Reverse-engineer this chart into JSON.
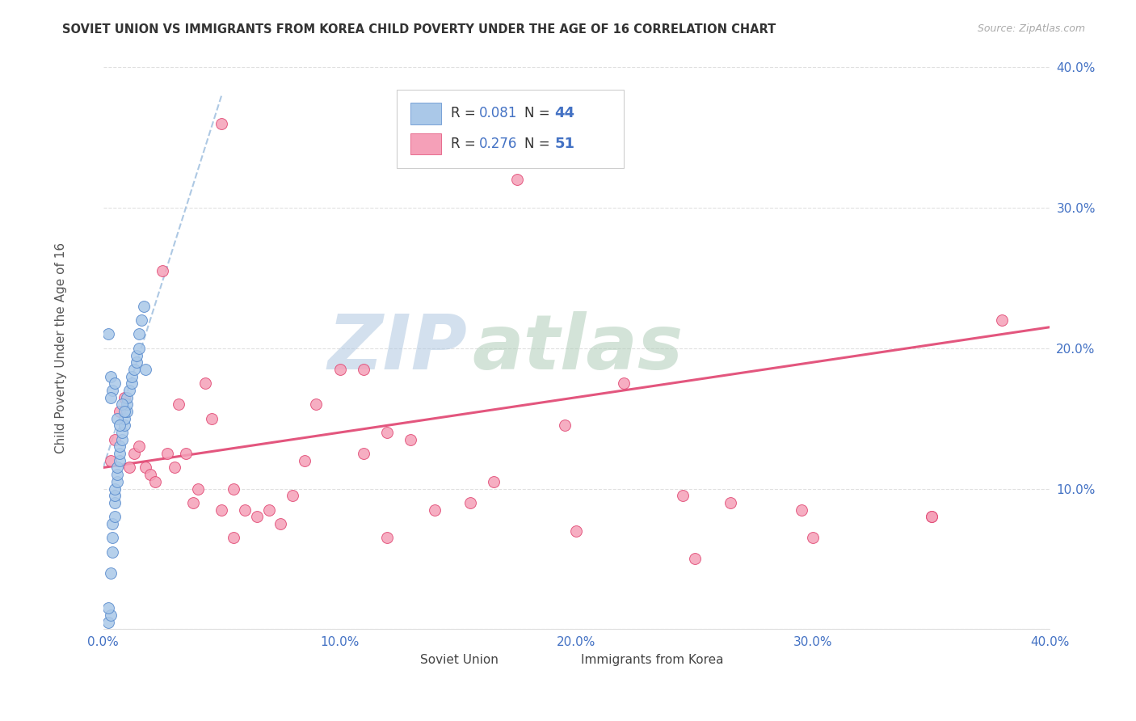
{
  "title": "SOVIET UNION VS IMMIGRANTS FROM KOREA CHILD POVERTY UNDER THE AGE OF 16 CORRELATION CHART",
  "source": "Source: ZipAtlas.com",
  "ylabel": "Child Poverty Under the Age of 16",
  "xlim": [
    0.0,
    0.4
  ],
  "ylim": [
    0.0,
    0.4
  ],
  "x_ticks": [
    0.0,
    0.1,
    0.2,
    0.3,
    0.4
  ],
  "y_ticks": [
    0.0,
    0.1,
    0.2,
    0.3,
    0.4
  ],
  "x_tick_labels": [
    "0.0%",
    "10.0%",
    "20.0%",
    "30.0%",
    "40.0%"
  ],
  "y_tick_labels": [
    "",
    "10.0%",
    "20.0%",
    "30.0%",
    "40.0%"
  ],
  "soviet_color": "#aac8e8",
  "soviet_edge_color": "#5588cc",
  "korea_color": "#f5a0b8",
  "korea_edge_color": "#e04470",
  "soviet_R": "0.081",
  "soviet_N": "44",
  "korea_R": "0.276",
  "korea_N": "51",
  "trendline_soviet_color": "#99bbdd",
  "trendline_korea_color": "#e04470",
  "soviet_trend_y0": 0.115,
  "soviet_trend_y1": 0.38,
  "korea_trend_y0": 0.115,
  "korea_trend_y1": 0.215,
  "soviet_x": [
    0.002,
    0.003,
    0.003,
    0.004,
    0.004,
    0.004,
    0.005,
    0.005,
    0.005,
    0.005,
    0.006,
    0.006,
    0.006,
    0.007,
    0.007,
    0.007,
    0.008,
    0.008,
    0.009,
    0.009,
    0.01,
    0.01,
    0.01,
    0.011,
    0.012,
    0.012,
    0.013,
    0.014,
    0.014,
    0.015,
    0.015,
    0.016,
    0.017,
    0.018,
    0.002,
    0.003,
    0.004,
    0.005,
    0.006,
    0.007,
    0.008,
    0.009,
    0.003,
    0.002
  ],
  "soviet_y": [
    0.005,
    0.01,
    0.04,
    0.055,
    0.065,
    0.075,
    0.08,
    0.09,
    0.095,
    0.1,
    0.105,
    0.11,
    0.115,
    0.12,
    0.125,
    0.13,
    0.135,
    0.14,
    0.145,
    0.15,
    0.155,
    0.16,
    0.165,
    0.17,
    0.175,
    0.18,
    0.185,
    0.19,
    0.195,
    0.2,
    0.21,
    0.22,
    0.23,
    0.185,
    0.21,
    0.18,
    0.17,
    0.175,
    0.15,
    0.145,
    0.16,
    0.155,
    0.165,
    0.015
  ],
  "korea_x": [
    0.003,
    0.005,
    0.007,
    0.009,
    0.011,
    0.013,
    0.015,
    0.018,
    0.02,
    0.022,
    0.025,
    0.027,
    0.03,
    0.032,
    0.035,
    0.038,
    0.04,
    0.043,
    0.046,
    0.05,
    0.055,
    0.06,
    0.065,
    0.07,
    0.075,
    0.08,
    0.09,
    0.1,
    0.11,
    0.12,
    0.13,
    0.14,
    0.155,
    0.165,
    0.175,
    0.195,
    0.22,
    0.245,
    0.265,
    0.295,
    0.35,
    0.38,
    0.12,
    0.085,
    0.055,
    0.2,
    0.25,
    0.3,
    0.05,
    0.35,
    0.11
  ],
  "korea_y": [
    0.12,
    0.135,
    0.155,
    0.165,
    0.115,
    0.125,
    0.13,
    0.115,
    0.11,
    0.105,
    0.255,
    0.125,
    0.115,
    0.16,
    0.125,
    0.09,
    0.1,
    0.175,
    0.15,
    0.085,
    0.1,
    0.085,
    0.08,
    0.085,
    0.075,
    0.095,
    0.16,
    0.185,
    0.185,
    0.14,
    0.135,
    0.085,
    0.09,
    0.105,
    0.32,
    0.145,
    0.175,
    0.095,
    0.09,
    0.085,
    0.08,
    0.22,
    0.065,
    0.12,
    0.065,
    0.07,
    0.05,
    0.065,
    0.36,
    0.08,
    0.125
  ]
}
